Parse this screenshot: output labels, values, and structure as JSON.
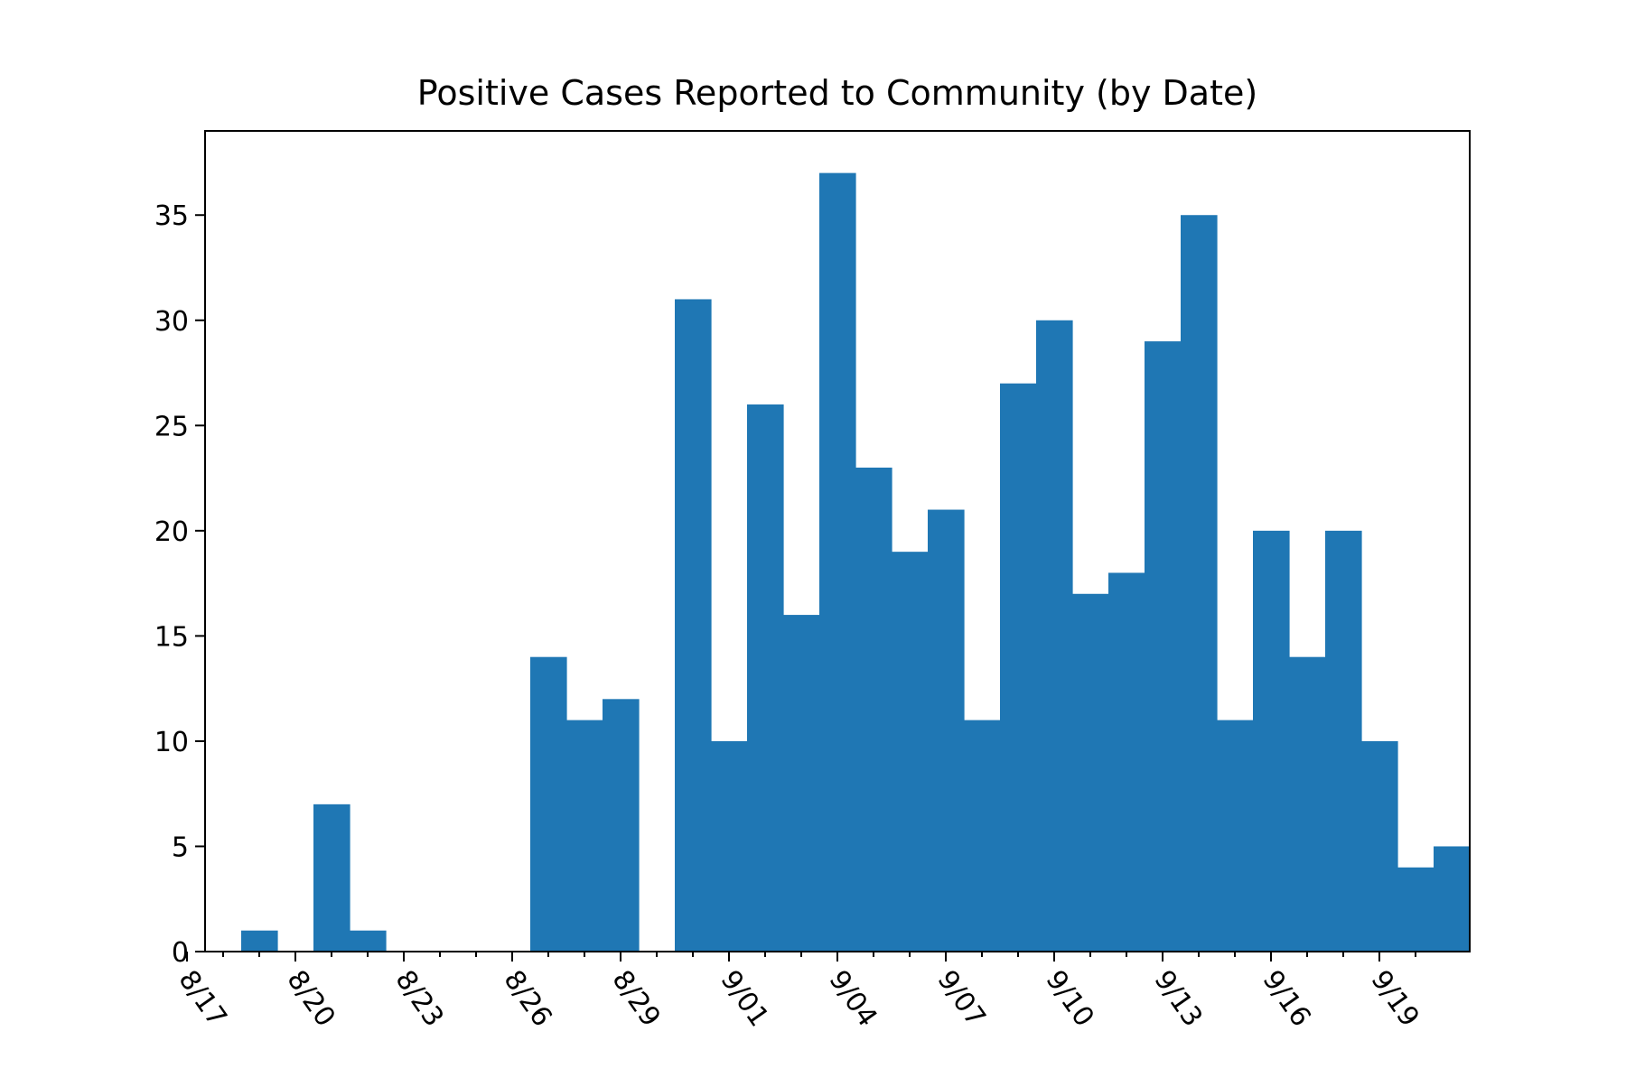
{
  "chart_data": {
    "type": "bar",
    "title": "Positive Cases Reported to Community (by Date)",
    "xlabel": "",
    "ylabel": "",
    "x_range": [
      "2020-08-17",
      "2020-09-20"
    ],
    "ylim": [
      0,
      39
    ],
    "grid": false,
    "bar_color": "#1f77b4",
    "x_ticks": [
      {
        "date": "2020-08-17",
        "label": "8/17"
      },
      {
        "date": "2020-08-20",
        "label": "8/20"
      },
      {
        "date": "2020-08-23",
        "label": "8/23"
      },
      {
        "date": "2020-08-26",
        "label": "8/26"
      },
      {
        "date": "2020-08-29",
        "label": "8/29"
      },
      {
        "date": "2020-09-01",
        "label": "9/01"
      },
      {
        "date": "2020-09-04",
        "label": "9/04"
      },
      {
        "date": "2020-09-07",
        "label": "9/07"
      },
      {
        "date": "2020-09-10",
        "label": "9/10"
      },
      {
        "date": "2020-09-13",
        "label": "9/13"
      },
      {
        "date": "2020-09-16",
        "label": "9/16"
      },
      {
        "date": "2020-09-19",
        "label": "9/19"
      }
    ],
    "y_ticks": [
      0,
      5,
      10,
      15,
      20,
      25,
      30,
      35
    ],
    "bars": [
      {
        "date": "2020-08-18",
        "value": 1
      },
      {
        "date": "2020-08-20",
        "value": 7
      },
      {
        "date": "2020-08-21",
        "value": 1
      },
      {
        "date": "2020-08-26",
        "value": 14
      },
      {
        "date": "2020-08-27",
        "value": 11
      },
      {
        "date": "2020-08-28",
        "value": 12
      },
      {
        "date": "2020-08-30",
        "value": 31
      },
      {
        "date": "2020-08-31",
        "value": 10
      },
      {
        "date": "2020-09-01",
        "value": 26
      },
      {
        "date": "2020-09-02",
        "value": 16
      },
      {
        "date": "2020-09-03",
        "value": 37
      },
      {
        "date": "2020-09-04",
        "value": 23
      },
      {
        "date": "2020-09-05",
        "value": 19
      },
      {
        "date": "2020-09-06",
        "value": 21
      },
      {
        "date": "2020-09-07",
        "value": 11
      },
      {
        "date": "2020-09-08",
        "value": 27
      },
      {
        "date": "2020-09-09",
        "value": 30
      },
      {
        "date": "2020-09-10",
        "value": 17
      },
      {
        "date": "2020-09-11",
        "value": 18
      },
      {
        "date": "2020-09-12",
        "value": 29
      },
      {
        "date": "2020-09-13",
        "value": 35
      },
      {
        "date": "2020-09-14",
        "value": 11
      },
      {
        "date": "2020-09-15",
        "value": 20
      },
      {
        "date": "2020-09-16",
        "value": 14
      },
      {
        "date": "2020-09-17",
        "value": 20
      },
      {
        "date": "2020-09-18",
        "value": 10
      },
      {
        "date": "2020-09-19",
        "value": 4
      },
      {
        "date": "2020-09-20",
        "value": 5
      }
    ]
  }
}
